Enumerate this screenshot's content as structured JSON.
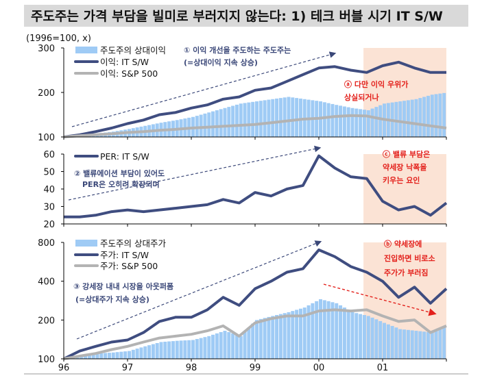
{
  "title": "주도주는 가격 부담을 빌미로 부러지지 않는다: 1) 테크 버블 시기 IT S/W",
  "colors": {
    "navy": "#3f4d80",
    "gray": "#b3b3b3",
    "bars": "#9fcbf5",
    "shade": "#fbe3d5",
    "red": "#e3201b",
    "title_bg": "#d9d9d9"
  },
  "chart_data": [
    {
      "type": "bar+line",
      "unit_label": "(1996=100, x)",
      "ylim": [
        100,
        300
      ],
      "yticks": [
        100,
        200,
        300
      ],
      "yticks_labels": [
        "100",
        "200",
        "300"
      ],
      "x": [
        1996.0,
        1996.25,
        1996.5,
        1996.75,
        1997.0,
        1997.25,
        1997.5,
        1997.75,
        1998.0,
        1998.25,
        1998.5,
        1998.75,
        1999.0,
        1999.25,
        1999.5,
        1999.75,
        2000.0,
        2000.25,
        2000.5,
        2000.75,
        2001.0,
        2001.25,
        2001.5,
        2001.75,
        2002.0
      ],
      "series": [
        {
          "name": "주도주의 상대이익",
          "kind": "bar",
          "values": [
            100,
            103,
            108,
            112,
            118,
            125,
            132,
            138,
            145,
            155,
            165,
            175,
            180,
            185,
            190,
            185,
            180,
            172,
            165,
            160,
            175,
            180,
            185,
            195,
            200
          ]
        },
        {
          "name": "이익: IT S/W",
          "kind": "line",
          "values": [
            100,
            105,
            112,
            120,
            130,
            138,
            150,
            155,
            165,
            172,
            185,
            190,
            205,
            210,
            225,
            240,
            255,
            258,
            250,
            245,
            260,
            268,
            255,
            245,
            245
          ]
        },
        {
          "name": "이익: S&P 500",
          "kind": "line",
          "values": [
            100,
            103,
            105,
            107,
            110,
            112,
            115,
            117,
            120,
            122,
            124,
            126,
            128,
            132,
            136,
            140,
            142,
            146,
            148,
            147,
            140,
            135,
            130,
            125,
            120
          ]
        }
      ],
      "annotations": [
        "① 이익 개선을 주도하는 주도주는",
        "(=상대이익 지속 상승)",
        "ⓐ 다만 이익 우위가",
        "상실되거나"
      ]
    },
    {
      "type": "line",
      "ylim": [
        20,
        60
      ],
      "yticks": [
        20,
        30,
        40,
        50,
        60
      ],
      "yticks_labels": [
        "20",
        "30",
        "40",
        "50",
        "60"
      ],
      "series": [
        {
          "name": "PER: IT S/W",
          "kind": "line",
          "values": [
            24,
            24,
            25,
            27,
            28,
            27,
            28,
            29,
            30,
            31,
            34,
            32,
            38,
            36,
            40,
            42,
            59,
            52,
            47,
            46,
            33,
            28,
            30,
            25,
            32
          ]
        }
      ],
      "annotations": [
        "② 밸류에이션 부담이 있어도",
        "PER은 오히려 확장되며",
        "ⓒ 밸류 부담은",
        "약세장 낙폭을",
        "키우는 요인"
      ]
    },
    {
      "type": "bar+line",
      "yscale": "log",
      "ylim": [
        100,
        800
      ],
      "yticks": [
        100,
        200,
        400,
        800
      ],
      "yticks_labels": [
        "100",
        "200",
        "400",
        "800"
      ],
      "series": [
        {
          "name": "주도주의 상대주가",
          "kind": "bar",
          "values": [
            100,
            105,
            110,
            112,
            115,
            125,
            135,
            138,
            140,
            150,
            165,
            150,
            200,
            215,
            230,
            250,
            290,
            270,
            230,
            215,
            190,
            170,
            165,
            160,
            180
          ]
        },
        {
          "name": "주가: IT S/W",
          "kind": "line",
          "values": [
            100,
            115,
            125,
            135,
            140,
            160,
            195,
            210,
            210,
            240,
            300,
            260,
            350,
            400,
            470,
            500,
            700,
            620,
            520,
            470,
            400,
            300,
            360,
            270,
            350
          ]
        },
        {
          "name": "주가: S&P 500",
          "kind": "line",
          "values": [
            100,
            105,
            110,
            118,
            125,
            135,
            145,
            150,
            155,
            165,
            180,
            150,
            190,
            205,
            215,
            215,
            235,
            240,
            235,
            240,
            215,
            195,
            200,
            160,
            180
          ]
        }
      ],
      "annotations": [
        "③ 강세장 내내 시장을 아웃퍼폼",
        "(=상대주가 지속 상승)",
        "ⓑ 약세장에",
        "진입하면 비로소",
        "주가가 부러짐"
      ]
    }
  ],
  "xaxis": {
    "range": [
      1996,
      2002
    ],
    "ticks": [
      1996,
      1997,
      1998,
      1999,
      2000,
      2001
    ],
    "tick_labels": [
      "96",
      "97",
      "98",
      "99",
      "00",
      "01"
    ]
  },
  "shaded_period": [
    2000.7,
    2002.0
  ]
}
